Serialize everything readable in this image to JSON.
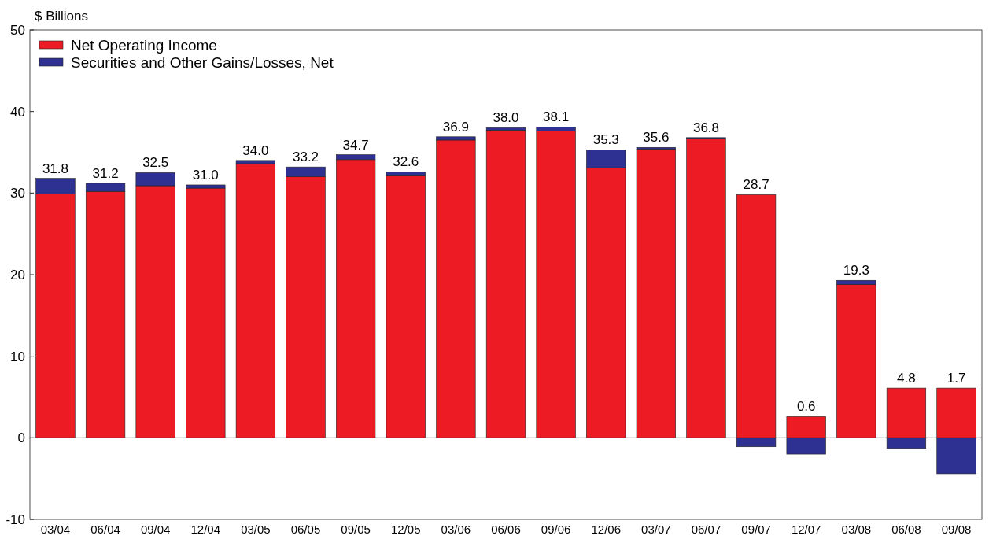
{
  "chart_data": {
    "type": "bar",
    "stacked": true,
    "ylabel": "$ Billions",
    "categories": [
      "03/04",
      "06/04",
      "09/04",
      "12/04",
      "03/05",
      "06/05",
      "09/05",
      "12/05",
      "03/06",
      "06/06",
      "09/06",
      "12/06",
      "03/07",
      "06/07",
      "09/07",
      "12/07",
      "03/08",
      "06/08",
      "09/08"
    ],
    "series": [
      {
        "name": "Net Operating Income",
        "color": "#ed1c24",
        "values": [
          29.9,
          30.2,
          30.9,
          30.6,
          33.6,
          32.0,
          34.1,
          32.1,
          36.5,
          37.7,
          37.6,
          33.1,
          35.4,
          36.7,
          29.8,
          2.6,
          18.8,
          6.1,
          6.1
        ]
      },
      {
        "name": "Securities and Other Gains/Losses, Net",
        "color": "#2e3192",
        "values": [
          1.9,
          1.0,
          1.6,
          0.4,
          0.4,
          1.2,
          0.6,
          0.5,
          0.4,
          0.3,
          0.5,
          2.2,
          0.2,
          0.1,
          -1.1,
          -2.0,
          0.5,
          -1.3,
          -4.4
        ]
      }
    ],
    "totals": [
      "31.8",
      "31.2",
      "32.5",
      "31.0",
      "34.0",
      "33.2",
      "34.7",
      "32.6",
      "36.9",
      "38.0",
      "38.1",
      "35.3",
      "35.6",
      "36.8",
      "28.7",
      "0.6",
      "19.3",
      "4.8",
      "1.7"
    ],
    "ylim": [
      -10,
      50
    ],
    "yticks": [
      -10,
      0,
      10,
      20,
      30,
      40,
      50
    ],
    "ref_lines": [
      {
        "axis": "y",
        "value": 0,
        "color": "#222222"
      }
    ],
    "legend": "top left"
  }
}
